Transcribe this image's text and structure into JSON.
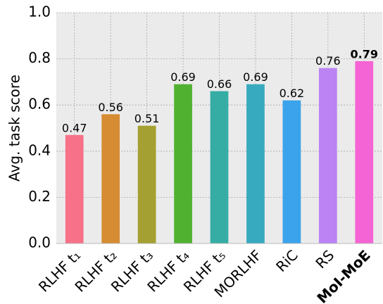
{
  "chart_data": {
    "type": "bar",
    "ylabel": "Avg. task score",
    "categories": [
      "RLHF t₁",
      "RLHF t₂",
      "RLHF t₃",
      "RLHF t₄",
      "RLHF t₅",
      "MORLHF",
      "RiC",
      "RS",
      "MoI-MoE"
    ],
    "values": [
      0.47,
      0.56,
      0.51,
      0.69,
      0.66,
      0.69,
      0.62,
      0.76,
      0.79
    ],
    "colors": [
      "#f77189",
      "#d58c32",
      "#a4a031",
      "#50b131",
      "#36ada4",
      "#38aabf",
      "#3ba3ec",
      "#bb83f4",
      "#f564d4"
    ],
    "bold_index": 8,
    "ylim": [
      0,
      1
    ],
    "yticks": [
      {
        "value": 0,
        "label": "0.0"
      },
      0.2,
      0.4,
      0.6,
      0.8,
      {
        "value": 1,
        "label": "1.0"
      }
    ],
    "grid": true
  }
}
